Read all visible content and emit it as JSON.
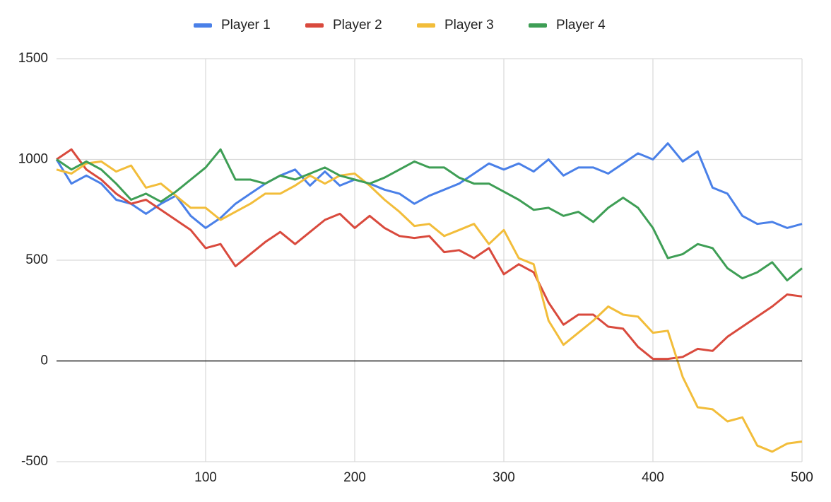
{
  "chart_data": {
    "type": "line",
    "x": [
      0,
      10,
      20,
      30,
      40,
      50,
      60,
      70,
      80,
      90,
      100,
      110,
      120,
      130,
      140,
      150,
      160,
      170,
      180,
      190,
      200,
      210,
      220,
      230,
      240,
      250,
      260,
      270,
      280,
      290,
      300,
      310,
      320,
      330,
      340,
      350,
      360,
      370,
      380,
      390,
      400,
      410,
      420,
      430,
      440,
      450,
      460,
      470,
      480,
      490,
      500
    ],
    "series": [
      {
        "name": "Player 1",
        "color": "#4a80e8",
        "values": [
          1000,
          880,
          920,
          880,
          800,
          780,
          730,
          780,
          820,
          720,
          660,
          710,
          780,
          830,
          880,
          920,
          950,
          870,
          940,
          870,
          900,
          880,
          850,
          830,
          780,
          820,
          850,
          880,
          930,
          980,
          950,
          980,
          940,
          1000,
          920,
          960,
          960,
          930,
          980,
          1030,
          1000,
          1080,
          990,
          1040,
          860,
          830,
          720,
          680,
          690,
          660,
          680
        ]
      },
      {
        "name": "Player 2",
        "color": "#d94a3d",
        "values": [
          1000,
          1050,
          950,
          900,
          830,
          780,
          800,
          750,
          700,
          650,
          560,
          580,
          470,
          530,
          590,
          640,
          580,
          640,
          700,
          730,
          660,
          720,
          660,
          620,
          610,
          620,
          540,
          550,
          510,
          560,
          430,
          480,
          440,
          290,
          180,
          230,
          230,
          170,
          160,
          70,
          10,
          10,
          20,
          60,
          50,
          120,
          170,
          220,
          270,
          330,
          320
        ]
      },
      {
        "name": "Player 3",
        "color": "#f2bd3a",
        "values": [
          950,
          930,
          980,
          990,
          940,
          970,
          860,
          880,
          820,
          760,
          760,
          700,
          740,
          780,
          830,
          830,
          870,
          920,
          880,
          920,
          930,
          870,
          800,
          740,
          670,
          680,
          620,
          650,
          680,
          580,
          650,
          510,
          480,
          200,
          80,
          140,
          200,
          270,
          230,
          220,
          140,
          150,
          -80,
          -230,
          -240,
          -300,
          -280,
          -420,
          -450,
          -410,
          -400
        ]
      },
      {
        "name": "Player 4",
        "color": "#3e9e55",
        "values": [
          1000,
          950,
          990,
          950,
          880,
          800,
          830,
          790,
          840,
          900,
          960,
          1050,
          900,
          900,
          880,
          920,
          900,
          930,
          960,
          920,
          900,
          880,
          910,
          950,
          990,
          960,
          960,
          910,
          880,
          880,
          840,
          800,
          750,
          760,
          720,
          740,
          690,
          760,
          810,
          760,
          660,
          510,
          530,
          580,
          560,
          460,
          410,
          440,
          490,
          400,
          460
        ]
      }
    ],
    "xlim": [
      0,
      500
    ],
    "xticks": [
      100,
      200,
      300,
      400,
      500
    ],
    "ylim": [
      -500,
      1500
    ],
    "yticks": [
      -500,
      0,
      500,
      1000,
      1500
    ],
    "grid": true,
    "legend": "top"
  }
}
